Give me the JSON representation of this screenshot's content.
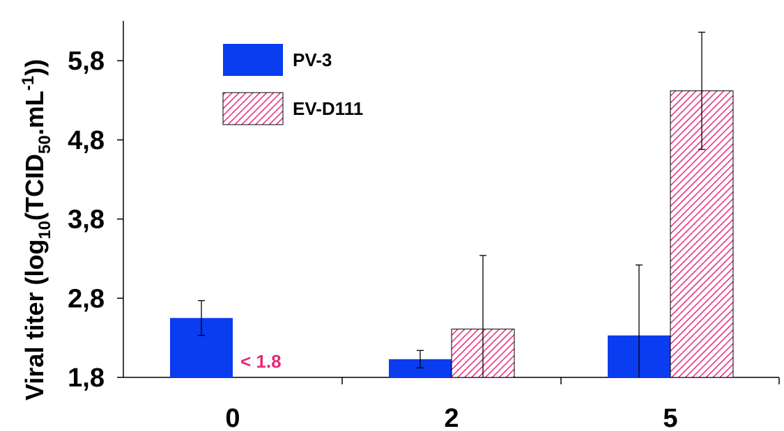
{
  "chart_data": {
    "type": "bar",
    "ylabel": {
      "main": "Viral titer (log",
      "sub1": "10",
      "mid": "(TCID",
      "sub2": "50",
      "mid2": ".mL",
      "sup": "-1",
      "end": "))"
    },
    "xlabel": "",
    "categories": [
      "0",
      "2",
      "5"
    ],
    "yticks": [
      "1,8",
      "2,8",
      "3,8",
      "4,8",
      "5,8"
    ],
    "ylim": [
      1.8,
      6.3
    ],
    "series": [
      {
        "name": "PV-3",
        "color": "#0a3cf0",
        "pattern": "solid",
        "values": [
          2.55,
          2.03,
          2.33
        ],
        "errors": [
          0.22,
          0.11,
          0.89
        ]
      },
      {
        "name": "EV-D111",
        "color": "#e8287a",
        "pattern": "hatched",
        "values": [
          null,
          2.41,
          5.42
        ],
        "errors": [
          null,
          0.93,
          0.74
        ]
      }
    ],
    "annotations": [
      {
        "text": "< 1.8",
        "color": "#e8287a"
      }
    ],
    "legend_position": "top-left"
  }
}
